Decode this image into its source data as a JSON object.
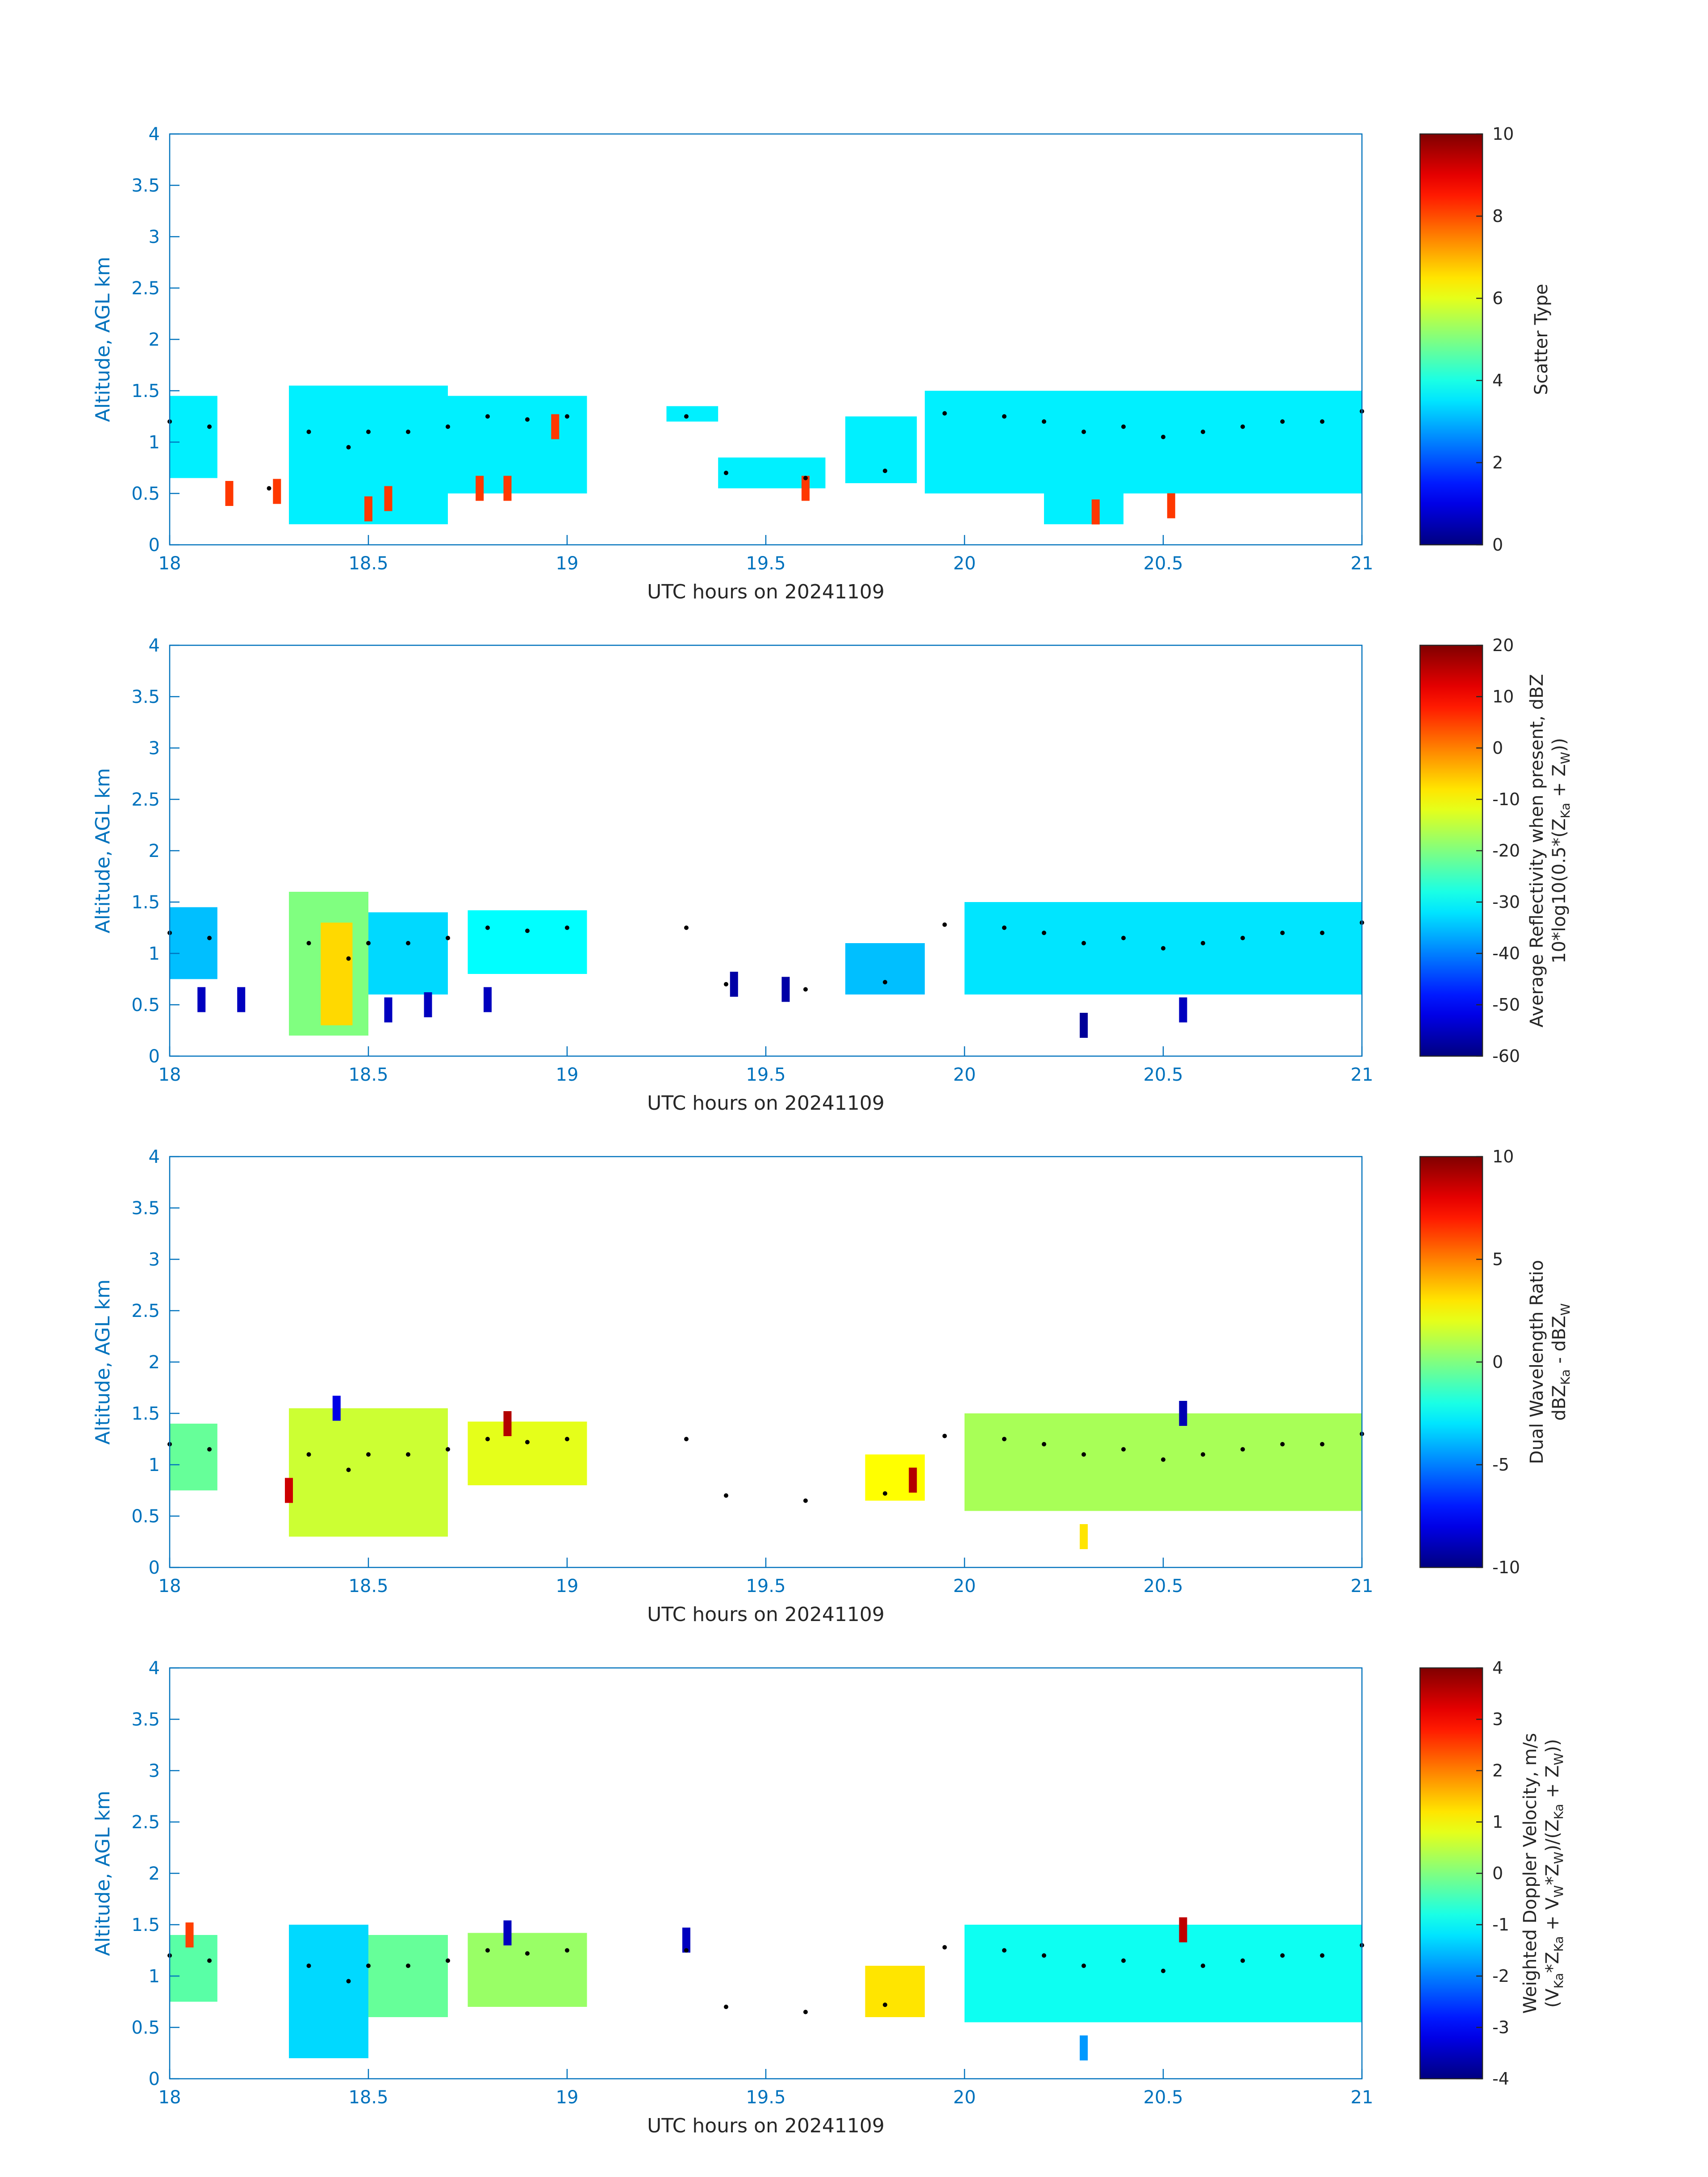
{
  "figure": {
    "background": "#ffffff",
    "axis_color": "#0072BD",
    "text_color": "#262626"
  },
  "chart_data": [
    {
      "type": "heatmap",
      "id": "scatter-type",
      "xlabel": "UTC hours on 20241109",
      "ylabel": "Altitude, AGL km",
      "xlim": [
        18,
        21
      ],
      "ylim": [
        0,
        4
      ],
      "xticks": [
        "18",
        "18.5",
        "19",
        "19.5",
        "20",
        "20.5",
        "21"
      ],
      "yticks": [
        "0",
        "0.5",
        "1",
        "1.5",
        "2",
        "2.5",
        "3",
        "3.5",
        "4"
      ],
      "grid": false,
      "colorbar": {
        "label_lines": [
          "Scatter Type"
        ],
        "range": [
          0,
          10
        ],
        "ticks": [
          "0",
          "2",
          "4",
          "6",
          "8",
          "10"
        ]
      },
      "regions": [
        {
          "x": [
            18.0,
            18.12
          ],
          "y": [
            0.65,
            1.45
          ],
          "value": 3.6
        },
        {
          "x": [
            18.3,
            18.7
          ],
          "y": [
            0.2,
            1.55
          ],
          "value": 3.6
        },
        {
          "x": [
            18.7,
            19.05
          ],
          "y": [
            0.5,
            1.45
          ],
          "value": 3.6
        },
        {
          "x": [
            19.25,
            19.38
          ],
          "y": [
            1.2,
            1.35
          ],
          "value": 3.6
        },
        {
          "x": [
            19.38,
            19.65
          ],
          "y": [
            0.55,
            0.85
          ],
          "value": 3.6
        },
        {
          "x": [
            19.7,
            19.88
          ],
          "y": [
            0.6,
            1.25
          ],
          "value": 3.6
        },
        {
          "x": [
            19.9,
            21.0
          ],
          "y": [
            0.5,
            1.5
          ],
          "value": 3.6
        },
        {
          "x": [
            20.2,
            20.4
          ],
          "y": [
            0.2,
            0.9
          ],
          "value": 3.6
        }
      ],
      "points": [
        {
          "x": 18.15,
          "y": 0.5,
          "value": 8.2
        },
        {
          "x": 18.27,
          "y": 0.52,
          "value": 8.2
        },
        {
          "x": 18.5,
          "y": 0.35,
          "value": 8.2
        },
        {
          "x": 18.55,
          "y": 0.45,
          "value": 8.2
        },
        {
          "x": 18.78,
          "y": 0.55,
          "value": 8.2
        },
        {
          "x": 18.85,
          "y": 0.55,
          "value": 8.2
        },
        {
          "x": 18.97,
          "y": 1.15,
          "value": 8.2
        },
        {
          "x": 19.6,
          "y": 0.55,
          "value": 8.2
        },
        {
          "x": 20.33,
          "y": 0.32,
          "value": 8.2
        },
        {
          "x": 20.52,
          "y": 0.38,
          "value": 8.2
        }
      ],
      "cloud_top_x": [
        18.0,
        18.1,
        18.25,
        18.35,
        18.45,
        18.5,
        18.6,
        18.7,
        18.8,
        18.9,
        19.0,
        19.3,
        19.4,
        19.6,
        19.8,
        19.95,
        20.1,
        20.2,
        20.3,
        20.4,
        20.5,
        20.6,
        20.7,
        20.8,
        20.9,
        21.0
      ],
      "cloud_top_y": [
        1.2,
        1.15,
        0.55,
        1.1,
        0.95,
        1.1,
        1.1,
        1.15,
        1.25,
        1.22,
        1.25,
        1.25,
        0.7,
        0.65,
        0.72,
        1.28,
        1.25,
        1.2,
        1.1,
        1.15,
        1.05,
        1.1,
        1.15,
        1.2,
        1.2,
        1.3
      ]
    },
    {
      "type": "heatmap",
      "id": "reflectivity",
      "xlabel": "UTC hours on 20241109",
      "ylabel": "Altitude, AGL km",
      "xlim": [
        18,
        21
      ],
      "ylim": [
        0,
        4
      ],
      "xticks": [
        "18",
        "18.5",
        "19",
        "19.5",
        "20",
        "20.5",
        "21"
      ],
      "yticks": [
        "0",
        "0.5",
        "1",
        "1.5",
        "2",
        "2.5",
        "3",
        "3.5",
        "4"
      ],
      "grid": false,
      "colorbar": {
        "label_lines": [
          "Average Reflectivity when present, dBZ",
          "10*log10(0.5*(Z",
          "Ka",
          " + Z",
          "W",
          "))"
        ],
        "range": [
          -60,
          20
        ],
        "ticks": [
          "-60",
          "-50",
          "-40",
          "-30",
          "-20",
          "-10",
          "0",
          "10",
          "20"
        ]
      },
      "regions": [
        {
          "x": [
            18.0,
            18.12
          ],
          "y": [
            0.75,
            1.45
          ],
          "value": -35
        },
        {
          "x": [
            18.3,
            18.5
          ],
          "y": [
            0.2,
            1.6
          ],
          "value": -20
        },
        {
          "x": [
            18.38,
            18.46
          ],
          "y": [
            0.3,
            1.3
          ],
          "value": -7
        },
        {
          "x": [
            18.5,
            18.7
          ],
          "y": [
            0.6,
            1.4
          ],
          "value": -33
        },
        {
          "x": [
            18.75,
            19.05
          ],
          "y": [
            0.8,
            1.42
          ],
          "value": -30
        },
        {
          "x": [
            20.0,
            21.0
          ],
          "y": [
            0.6,
            1.5
          ],
          "value": -32
        },
        {
          "x": [
            19.7,
            19.9
          ],
          "y": [
            0.6,
            1.1
          ],
          "value": -35
        }
      ],
      "points": [
        {
          "x": 18.08,
          "y": 0.55,
          "value": -55
        },
        {
          "x": 18.18,
          "y": 0.55,
          "value": -55
        },
        {
          "x": 18.55,
          "y": 0.45,
          "value": -55
        },
        {
          "x": 18.65,
          "y": 0.5,
          "value": -55
        },
        {
          "x": 18.8,
          "y": 0.55,
          "value": -55
        },
        {
          "x": 19.42,
          "y": 0.7,
          "value": -57
        },
        {
          "x": 19.55,
          "y": 0.65,
          "value": -57
        },
        {
          "x": 20.3,
          "y": 0.3,
          "value": -58
        },
        {
          "x": 20.55,
          "y": 0.45,
          "value": -55
        }
      ],
      "cloud_top_x": [
        18.0,
        18.1,
        18.35,
        18.45,
        18.5,
        18.6,
        18.7,
        18.8,
        18.9,
        19.0,
        19.3,
        19.4,
        19.6,
        19.8,
        19.95,
        20.1,
        20.2,
        20.3,
        20.4,
        20.5,
        20.6,
        20.7,
        20.8,
        20.9,
        21.0
      ],
      "cloud_top_y": [
        1.2,
        1.15,
        1.1,
        0.95,
        1.1,
        1.1,
        1.15,
        1.25,
        1.22,
        1.25,
        1.25,
        0.7,
        0.65,
        0.72,
        1.28,
        1.25,
        1.2,
        1.1,
        1.15,
        1.05,
        1.1,
        1.15,
        1.2,
        1.2,
        1.3
      ]
    },
    {
      "type": "heatmap",
      "id": "dual-wavelength-ratio",
      "xlabel": "UTC hours on 20241109",
      "ylabel": "Altitude, AGL km",
      "xlim": [
        18,
        21
      ],
      "ylim": [
        0,
        4
      ],
      "xticks": [
        "18",
        "18.5",
        "19",
        "19.5",
        "20",
        "20.5",
        "21"
      ],
      "yticks": [
        "0",
        "0.5",
        "1",
        "1.5",
        "2",
        "2.5",
        "3",
        "3.5",
        "4"
      ],
      "grid": false,
      "colorbar": {
        "label_lines": [
          "Dual Wavelength Ratio",
          "dBZ",
          "Ka",
          " - dBZ",
          "W"
        ],
        "range": [
          -10,
          10
        ],
        "ticks": [
          "-10",
          "-5",
          "0",
          "5",
          "10"
        ]
      },
      "regions": [
        {
          "x": [
            18.0,
            18.12
          ],
          "y": [
            0.75,
            1.4
          ],
          "value": -0.5
        },
        {
          "x": [
            18.3,
            18.7
          ],
          "y": [
            0.3,
            1.55
          ],
          "value": 1.5
        },
        {
          "x": [
            18.75,
            19.05
          ],
          "y": [
            0.8,
            1.42
          ],
          "value": 2.0
        },
        {
          "x": [
            20.0,
            21.0
          ],
          "y": [
            0.55,
            1.5
          ],
          "value": 0.8
        },
        {
          "x": [
            19.75,
            19.9
          ],
          "y": [
            0.65,
            1.1
          ],
          "value": 2.5
        }
      ],
      "points": [
        {
          "x": 18.3,
          "y": 0.75,
          "value": 8.5
        },
        {
          "x": 18.42,
          "y": 1.55,
          "value": -8
        },
        {
          "x": 18.85,
          "y": 1.4,
          "value": 9
        },
        {
          "x": 19.87,
          "y": 0.85,
          "value": 9
        },
        {
          "x": 20.3,
          "y": 0.3,
          "value": 3
        },
        {
          "x": 20.55,
          "y": 1.5,
          "value": -9
        }
      ],
      "cloud_top_x": [
        18.0,
        18.1,
        18.35,
        18.45,
        18.5,
        18.6,
        18.7,
        18.8,
        18.9,
        19.0,
        19.3,
        19.4,
        19.6,
        19.8,
        19.95,
        20.1,
        20.2,
        20.3,
        20.4,
        20.5,
        20.6,
        20.7,
        20.8,
        20.9,
        21.0
      ],
      "cloud_top_y": [
        1.2,
        1.15,
        1.1,
        0.95,
        1.1,
        1.1,
        1.15,
        1.25,
        1.22,
        1.25,
        1.25,
        0.7,
        0.65,
        0.72,
        1.28,
        1.25,
        1.2,
        1.1,
        1.15,
        1.05,
        1.1,
        1.15,
        1.2,
        1.2,
        1.3
      ]
    },
    {
      "type": "heatmap",
      "id": "doppler-velocity",
      "xlabel": "UTC hours on 20241109",
      "ylabel": "Altitude, AGL km",
      "xlim": [
        18,
        21
      ],
      "ylim": [
        0,
        4
      ],
      "xticks": [
        "18",
        "18.5",
        "19",
        "19.5",
        "20",
        "20.5",
        "21"
      ],
      "yticks": [
        "0",
        "0.5",
        "1",
        "1.5",
        "2",
        "2.5",
        "3",
        "3.5",
        "4"
      ],
      "grid": false,
      "colorbar": {
        "label_lines": [
          "Weighted Doppler Velocity, m/s",
          "(V",
          "Ka",
          "*Z",
          "Ka",
          " + V",
          "W",
          "*Z",
          "W",
          ")/(Z",
          "Ka",
          " + Z",
          "W",
          "))"
        ],
        "range": [
          -4,
          4
        ],
        "ticks": [
          "-4",
          "-3",
          "-2",
          "-1",
          "0",
          "1",
          "2",
          "3",
          "4"
        ]
      },
      "regions": [
        {
          "x": [
            18.0,
            18.12
          ],
          "y": [
            0.75,
            1.4
          ],
          "value": -0.3
        },
        {
          "x": [
            18.3,
            18.5
          ],
          "y": [
            0.2,
            1.5
          ],
          "value": -1.3
        },
        {
          "x": [
            18.5,
            18.7
          ],
          "y": [
            0.6,
            1.4
          ],
          "value": -0.2
        },
        {
          "x": [
            18.75,
            19.05
          ],
          "y": [
            0.7,
            1.42
          ],
          "value": 0.2
        },
        {
          "x": [
            20.0,
            21.0
          ],
          "y": [
            0.55,
            1.5
          ],
          "value": -0.9
        },
        {
          "x": [
            19.75,
            19.9
          ],
          "y": [
            0.6,
            1.1
          ],
          "value": 1.2
        }
      ],
      "points": [
        {
          "x": 18.05,
          "y": 1.4,
          "value": 2.5
        },
        {
          "x": 18.85,
          "y": 1.42,
          "value": -3.5
        },
        {
          "x": 19.3,
          "y": 1.35,
          "value": -3.5
        },
        {
          "x": 20.3,
          "y": 0.3,
          "value": -1.8
        },
        {
          "x": 20.55,
          "y": 1.45,
          "value": 3.5
        }
      ],
      "cloud_top_x": [
        18.0,
        18.1,
        18.35,
        18.45,
        18.5,
        18.6,
        18.7,
        18.8,
        18.9,
        19.0,
        19.3,
        19.4,
        19.6,
        19.8,
        19.95,
        20.1,
        20.2,
        20.3,
        20.4,
        20.5,
        20.6,
        20.7,
        20.8,
        20.9,
        21.0
      ],
      "cloud_top_y": [
        1.2,
        1.15,
        1.1,
        0.95,
        1.1,
        1.1,
        1.15,
        1.25,
        1.22,
        1.25,
        1.25,
        0.7,
        0.65,
        0.72,
        1.28,
        1.25,
        1.2,
        1.1,
        1.15,
        1.05,
        1.1,
        1.15,
        1.2,
        1.2,
        1.3
      ]
    }
  ]
}
